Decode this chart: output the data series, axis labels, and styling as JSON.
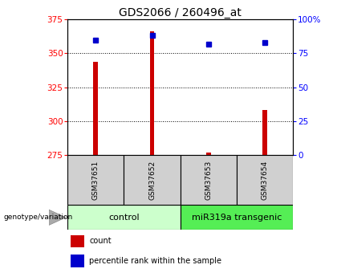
{
  "title": "GDS2066 / 260496_at",
  "samples": [
    "GSM37651",
    "GSM37652",
    "GSM37653",
    "GSM37654"
  ],
  "counts": [
    344,
    366,
    277,
    308
  ],
  "percentiles": [
    85,
    88,
    82,
    83
  ],
  "ylim_left": [
    275,
    375
  ],
  "ylim_right": [
    0,
    100
  ],
  "yticks_left": [
    275,
    300,
    325,
    350,
    375
  ],
  "yticks_right": [
    0,
    25,
    50,
    75,
    100
  ],
  "ytick_labels_right": [
    "0",
    "25",
    "50",
    "75",
    "100%"
  ],
  "bar_color": "#cc0000",
  "dot_color": "#0000cc",
  "groups": [
    {
      "label": "control",
      "samples": [
        0,
        1
      ],
      "color": "#ccffcc"
    },
    {
      "label": "miR319a transgenic",
      "samples": [
        2,
        3
      ],
      "color": "#55ee55"
    }
  ],
  "legend_items": [
    {
      "label": "count",
      "color": "#cc0000"
    },
    {
      "label": "percentile rank within the sample",
      "color": "#0000cc"
    }
  ],
  "genotype_label": "genotype/variation",
  "bar_width": 0.08,
  "title_fontsize": 10,
  "tick_fontsize": 7.5,
  "sample_fontsize": 6.5,
  "group_fontsize": 8
}
